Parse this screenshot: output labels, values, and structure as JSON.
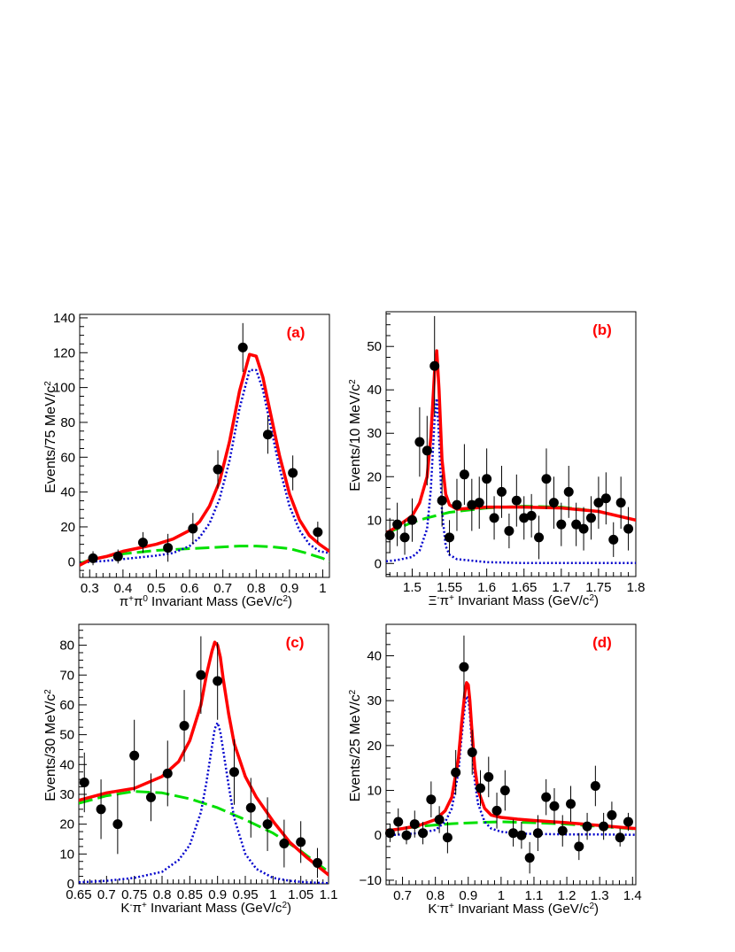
{
  "colors": {
    "total": "#ff0000",
    "signal": "#0000cc",
    "background": "#00e000",
    "points": "#000000"
  },
  "chart_data": [
    {
      "type": "scatter",
      "tag": "(a)",
      "xlabel_html": "π<tspan baseline-shift='super' font-size='10'>+</tspan>π<tspan baseline-shift='super' font-size='10'>0</tspan> Invariant Mass (GeV/c<tspan baseline-shift='super' font-size='10'>2</tspan>)",
      "xlabel": "π+π0 Invariant Mass (GeV/c2)",
      "ylabel": "Events/75 MeV/c2",
      "xlim": [
        0.27,
        1.02
      ],
      "ylim": [
        -9,
        142
      ],
      "xticks": [
        0.3,
        0.4,
        0.5,
        0.6,
        0.7,
        0.8,
        0.9,
        1
      ],
      "xtick_labels": [
        "0.3",
        "0.4",
        "0.5",
        "0.6",
        "0.7",
        "0.8",
        "0.9",
        "1"
      ],
      "yticks": [
        0,
        20,
        40,
        60,
        80,
        100,
        120,
        140
      ],
      "ytick_labels": [
        "0",
        "20",
        "40",
        "60",
        "80",
        "100",
        "120",
        "140"
      ],
      "points": [
        {
          "x": 0.31,
          "y": 2,
          "err": 4
        },
        {
          "x": 0.385,
          "y": 3,
          "err": 4
        },
        {
          "x": 0.46,
          "y": 11,
          "err": 6
        },
        {
          "x": 0.535,
          "y": 8,
          "err": 8
        },
        {
          "x": 0.61,
          "y": 19,
          "err": 9
        },
        {
          "x": 0.685,
          "y": 53,
          "err": 11
        },
        {
          "x": 0.76,
          "y": 123,
          "err": 14
        },
        {
          "x": 0.835,
          "y": 73,
          "err": 11
        },
        {
          "x": 0.91,
          "y": 51,
          "err": 10
        },
        {
          "x": 0.985,
          "y": 17,
          "err": 6
        }
      ],
      "total_curve": {
        "x": [
          0.27,
          0.3,
          0.35,
          0.4,
          0.45,
          0.5,
          0.55,
          0.6,
          0.63,
          0.66,
          0.69,
          0.72,
          0.75,
          0.78,
          0.8,
          0.82,
          0.84,
          0.87,
          0.9,
          0.93,
          0.96,
          0.99,
          1.02
        ],
        "y": [
          -2,
          1,
          3,
          6,
          8,
          10,
          13,
          18,
          23,
          32,
          46,
          69,
          98,
          119,
          118,
          106,
          88,
          61,
          39,
          24,
          15,
          10,
          6
        ]
      },
      "signal_curve": {
        "x": [
          0.27,
          0.3,
          0.35,
          0.4,
          0.45,
          0.5,
          0.55,
          0.6,
          0.63,
          0.66,
          0.69,
          0.72,
          0.75,
          0.78,
          0.8,
          0.82,
          0.84,
          0.87,
          0.9,
          0.93,
          0.96,
          0.99,
          1.02
        ],
        "y": [
          -1,
          0,
          0.5,
          1.5,
          2.5,
          3.5,
          5,
          9,
          14,
          22,
          36,
          58,
          88,
          110,
          110,
          99,
          81,
          54,
          32,
          18,
          10,
          6,
          5
        ]
      },
      "bkg_curve": {
        "x": [
          0.27,
          0.3,
          0.35,
          0.4,
          0.45,
          0.5,
          0.55,
          0.6,
          0.65,
          0.7,
          0.75,
          0.8,
          0.85,
          0.9,
          0.95,
          1.0,
          1.02
        ],
        "y": [
          -1,
          1,
          3,
          4.5,
          5.5,
          6.5,
          7,
          7.5,
          8,
          8.5,
          9,
          9,
          8.5,
          7.5,
          5,
          2,
          0
        ]
      }
    },
    {
      "type": "scatter",
      "tag": "(b)",
      "xlabel_html": "Ξ<tspan baseline-shift='super' font-size='10'>-</tspan>π<tspan baseline-shift='super' font-size='10'>+</tspan> Invariant Mass (GeV/c<tspan baseline-shift='super' font-size='10'>2</tspan>)",
      "xlabel": "Ξ-π+ Invariant Mass (GeV/c2)",
      "ylabel": "Events/10 MeV/c2",
      "xlim": [
        1.465,
        1.8
      ],
      "ylim": [
        -3,
        58
      ],
      "xticks": [
        1.5,
        1.55,
        1.6,
        1.65,
        1.7,
        1.75,
        1.8
      ],
      "xtick_labels": [
        "1.5",
        "1.55",
        "1.6",
        "1.65",
        "1.7",
        "1.75",
        "1.8"
      ],
      "yticks": [
        0,
        10,
        20,
        30,
        40,
        50
      ],
      "ytick_labels": [
        "0",
        "10",
        "20",
        "30",
        "40",
        "50"
      ],
      "points": [
        {
          "x": 1.47,
          "y": 6.5,
          "err": 4
        },
        {
          "x": 1.48,
          "y": 9,
          "err": 5
        },
        {
          "x": 1.49,
          "y": 6,
          "err": 4
        },
        {
          "x": 1.5,
          "y": 10,
          "err": 5
        },
        {
          "x": 1.51,
          "y": 28,
          "err": 8
        },
        {
          "x": 1.52,
          "y": 26,
          "err": 8
        },
        {
          "x": 1.53,
          "y": 45.5,
          "err": 11.5
        },
        {
          "x": 1.54,
          "y": 14.5,
          "err": 6
        },
        {
          "x": 1.55,
          "y": 6,
          "err": 4
        },
        {
          "x": 1.56,
          "y": 13.5,
          "err": 6
        },
        {
          "x": 1.57,
          "y": 20.5,
          "err": 7
        },
        {
          "x": 1.58,
          "y": 13.5,
          "err": 6
        },
        {
          "x": 1.59,
          "y": 14,
          "err": 6
        },
        {
          "x": 1.6,
          "y": 19.5,
          "err": 7
        },
        {
          "x": 1.61,
          "y": 10.5,
          "err": 5
        },
        {
          "x": 1.62,
          "y": 16.5,
          "err": 6
        },
        {
          "x": 1.63,
          "y": 7.5,
          "err": 4
        },
        {
          "x": 1.64,
          "y": 14.5,
          "err": 6
        },
        {
          "x": 1.65,
          "y": 10.5,
          "err": 5
        },
        {
          "x": 1.66,
          "y": 11,
          "err": 5
        },
        {
          "x": 1.67,
          "y": 6,
          "err": 5
        },
        {
          "x": 1.68,
          "y": 19.5,
          "err": 7
        },
        {
          "x": 1.69,
          "y": 14,
          "err": 6
        },
        {
          "x": 1.7,
          "y": 9,
          "err": 5
        },
        {
          "x": 1.71,
          "y": 16.5,
          "err": 6
        },
        {
          "x": 1.72,
          "y": 9,
          "err": 5
        },
        {
          "x": 1.73,
          "y": 8,
          "err": 5
        },
        {
          "x": 1.74,
          "y": 10.5,
          "err": 5
        },
        {
          "x": 1.75,
          "y": 14,
          "err": 6
        },
        {
          "x": 1.76,
          "y": 15,
          "err": 6
        },
        {
          "x": 1.77,
          "y": 5.5,
          "err": 4
        },
        {
          "x": 1.78,
          "y": 14,
          "err": 6
        },
        {
          "x": 1.79,
          "y": 8,
          "err": 5
        }
      ],
      "total_curve": {
        "x": [
          1.465,
          1.48,
          1.5,
          1.51,
          1.52,
          1.525,
          1.53,
          1.533,
          1.536,
          1.54,
          1.545,
          1.55,
          1.56,
          1.6,
          1.65,
          1.7,
          1.75,
          1.8
        ],
        "y": [
          7,
          8.5,
          11,
          14,
          20,
          29,
          44,
          49,
          40,
          24,
          16,
          13.5,
          12.5,
          13,
          13,
          12.8,
          12,
          10
        ]
      },
      "signal_curve": {
        "x": [
          1.465,
          1.48,
          1.5,
          1.51,
          1.52,
          1.525,
          1.53,
          1.533,
          1.536,
          1.54,
          1.545,
          1.55,
          1.56,
          1.6,
          1.65,
          1.7,
          1.75,
          1.8
        ],
        "y": [
          0.5,
          0.8,
          1.5,
          3,
          8,
          17,
          33,
          38,
          29,
          12,
          4,
          2,
          1,
          0.3,
          0.1,
          0.1,
          0.1,
          0.1
        ]
      },
      "bkg_curve": {
        "x": [
          1.465,
          1.48,
          1.5,
          1.52,
          1.55,
          1.6,
          1.65,
          1.7,
          1.75,
          1.8
        ],
        "y": [
          7,
          8,
          9.5,
          10.5,
          11.8,
          12.8,
          13.2,
          13,
          12,
          10
        ]
      }
    },
    {
      "type": "scatter",
      "tag": "(c)",
      "xlabel_html": "K<tspan baseline-shift='super' font-size='10'>-</tspan>π<tspan baseline-shift='super' font-size='10'>+</tspan> Invariant Mass (GeV/c<tspan baseline-shift='super' font-size='10'>2</tspan>)",
      "xlabel": "K-π+ Invariant Mass (GeV/c2)",
      "ylabel": "Events/30 MeV/c2",
      "xlim": [
        0.65,
        1.1
      ],
      "ylim": [
        0,
        87
      ],
      "xticks": [
        0.65,
        0.7,
        0.75,
        0.8,
        0.85,
        0.9,
        0.95,
        1,
        1.05,
        1.1
      ],
      "xtick_labels": [
        "0.65",
        "0.7",
        "0.75",
        "0.8",
        "0.85",
        "0.9",
        "0.95",
        "1",
        "1.05",
        "1.1"
      ],
      "yticks": [
        0,
        10,
        20,
        30,
        40,
        50,
        60,
        70,
        80
      ],
      "ytick_labels": [
        "0",
        "10",
        "20",
        "30",
        "40",
        "50",
        "60",
        "70",
        "80"
      ],
      "points": [
        {
          "x": 0.66,
          "y": 34,
          "err": 10
        },
        {
          "x": 0.69,
          "y": 25,
          "err": 10
        },
        {
          "x": 0.72,
          "y": 20,
          "err": 10
        },
        {
          "x": 0.75,
          "y": 43,
          "err": 12
        },
        {
          "x": 0.78,
          "y": 29,
          "err": 8
        },
        {
          "x": 0.81,
          "y": 37,
          "err": 11
        },
        {
          "x": 0.84,
          "y": 53,
          "err": 12
        },
        {
          "x": 0.87,
          "y": 70,
          "err": 13
        },
        {
          "x": 0.9,
          "y": 68,
          "err": 13
        },
        {
          "x": 0.93,
          "y": 37.5,
          "err": 11
        },
        {
          "x": 0.96,
          "y": 25.5,
          "err": 10
        },
        {
          "x": 0.99,
          "y": 20,
          "err": 9
        },
        {
          "x": 1.02,
          "y": 13.5,
          "err": 8
        },
        {
          "x": 1.05,
          "y": 14,
          "err": 7
        },
        {
          "x": 1.08,
          "y": 7,
          "err": 5
        }
      ],
      "total_curve": {
        "x": [
          0.65,
          0.7,
          0.75,
          0.8,
          0.83,
          0.85,
          0.87,
          0.88,
          0.89,
          0.895,
          0.9,
          0.905,
          0.91,
          0.92,
          0.93,
          0.95,
          0.97,
          1.0,
          1.03,
          1.06,
          1.1
        ],
        "y": [
          28,
          30.5,
          32,
          36,
          41,
          48,
          60,
          70,
          78,
          81,
          80,
          76,
          69,
          57,
          47,
          36,
          29,
          21,
          14,
          9,
          3
        ]
      },
      "signal_curve": {
        "x": [
          0.65,
          0.7,
          0.75,
          0.8,
          0.83,
          0.85,
          0.87,
          0.88,
          0.89,
          0.895,
          0.9,
          0.905,
          0.91,
          0.92,
          0.93,
          0.95,
          0.97,
          1.0,
          1.03,
          1.06,
          1.1
        ],
        "y": [
          0.5,
          1,
          2,
          4,
          8,
          13,
          24,
          34,
          46,
          52,
          54,
          51,
          45,
          33,
          22,
          10,
          5,
          2,
          1,
          0.5,
          0.2
        ]
      },
      "bkg_curve": {
        "x": [
          0.65,
          0.7,
          0.75,
          0.8,
          0.85,
          0.9,
          0.95,
          1.0,
          1.05,
          1.1
        ],
        "y": [
          27,
          29.5,
          31,
          30.5,
          28.5,
          25.5,
          21.5,
          17,
          11,
          4
        ]
      }
    },
    {
      "type": "scatter",
      "tag": "(d)",
      "xlabel_html": "K<tspan baseline-shift='super' font-size='10'>-</tspan>π<tspan baseline-shift='super' font-size='10'>+</tspan> Invariant Mass (GeV/c<tspan baseline-shift='super' font-size='10'>2</tspan>)",
      "xlabel": "K-π+ Invariant Mass (GeV/c2)",
      "ylabel": "Events/25 MeV/c2",
      "xlim": [
        0.65,
        1.41
      ],
      "ylim": [
        -11,
        47
      ],
      "xticks": [
        0.7,
        0.8,
        0.9,
        1,
        1.1,
        1.2,
        1.3,
        1.4
      ],
      "xtick_labels": [
        "0.7",
        "0.8",
        "0.9",
        "1",
        "1.1",
        "1.2",
        "1.3",
        "1.4"
      ],
      "yticks": [
        -10,
        0,
        10,
        20,
        30,
        40
      ],
      "ytick_labels": [
        "−10",
        "0",
        "10",
        "20",
        "30",
        "40"
      ],
      "points": [
        {
          "x": 0.662,
          "y": 0.5,
          "err": 2
        },
        {
          "x": 0.687,
          "y": 3,
          "err": 3
        },
        {
          "x": 0.712,
          "y": 0,
          "err": 2
        },
        {
          "x": 0.737,
          "y": 2.5,
          "err": 3
        },
        {
          "x": 0.762,
          "y": 0.5,
          "err": 2.5
        },
        {
          "x": 0.787,
          "y": 8,
          "err": 4
        },
        {
          "x": 0.812,
          "y": 3.5,
          "err": 3
        },
        {
          "x": 0.837,
          "y": -0.5,
          "err": 3.5
        },
        {
          "x": 0.862,
          "y": 14,
          "err": 5
        },
        {
          "x": 0.887,
          "y": 37.5,
          "err": 7
        },
        {
          "x": 0.912,
          "y": 18.5,
          "err": 5
        },
        {
          "x": 0.937,
          "y": 10.5,
          "err": 4
        },
        {
          "x": 0.962,
          "y": 13,
          "err": 4.5
        },
        {
          "x": 0.987,
          "y": 5.5,
          "err": 4
        },
        {
          "x": 1.012,
          "y": 10,
          "err": 4.5
        },
        {
          "x": 1.037,
          "y": 0.5,
          "err": 3
        },
        {
          "x": 1.062,
          "y": 0,
          "err": 3
        },
        {
          "x": 1.087,
          "y": -5,
          "err": 3.5
        },
        {
          "x": 1.112,
          "y": 0.5,
          "err": 4
        },
        {
          "x": 1.137,
          "y": 8.5,
          "err": 4
        },
        {
          "x": 1.162,
          "y": 6.5,
          "err": 4
        },
        {
          "x": 1.187,
          "y": 1,
          "err": 3.5
        },
        {
          "x": 1.212,
          "y": 7,
          "err": 4
        },
        {
          "x": 1.237,
          "y": -2.5,
          "err": 3
        },
        {
          "x": 1.262,
          "y": 2,
          "err": 3
        },
        {
          "x": 1.287,
          "y": 11,
          "err": 4.5
        },
        {
          "x": 1.312,
          "y": 2,
          "err": 3
        },
        {
          "x": 1.337,
          "y": 4.5,
          "err": 3
        },
        {
          "x": 1.362,
          "y": -0.5,
          "err": 2
        },
        {
          "x": 1.387,
          "y": 3,
          "err": 2
        }
      ],
      "total_curve": {
        "x": [
          0.65,
          0.7,
          0.75,
          0.8,
          0.83,
          0.85,
          0.87,
          0.88,
          0.89,
          0.895,
          0.9,
          0.905,
          0.91,
          0.92,
          0.93,
          0.95,
          0.97,
          1.0,
          1.05,
          1.1,
          1.2,
          1.3,
          1.41
        ],
        "y": [
          1,
          1.5,
          2.2,
          3.5,
          5.5,
          8.5,
          17,
          25,
          32,
          34,
          33.5,
          30,
          24.5,
          15,
          10,
          6,
          4.5,
          4,
          3.6,
          3.3,
          2.8,
          2.2,
          1.5
        ]
      },
      "signal_curve": {
        "x": [
          0.65,
          0.7,
          0.75,
          0.8,
          0.83,
          0.85,
          0.87,
          0.88,
          0.89,
          0.895,
          0.9,
          0.905,
          0.91,
          0.92,
          0.93,
          0.95,
          0.97,
          1.0,
          1.05,
          1.1,
          1.2,
          1.3,
          1.41
        ],
        "y": [
          0,
          0.2,
          0.5,
          1.2,
          3,
          6,
          14,
          22,
          29,
          31,
          30.5,
          27,
          21.5,
          12,
          7,
          3,
          1.5,
          0.8,
          0.4,
          0.3,
          0.2,
          0.2,
          0.1
        ]
      },
      "bkg_curve": {
        "x": [
          0.65,
          0.75,
          0.85,
          0.95,
          1.0,
          1.05,
          1.1,
          1.2,
          1.3,
          1.41
        ],
        "y": [
          1,
          2,
          2.6,
          2.9,
          3,
          2.9,
          2.8,
          2.5,
          2,
          1.4
        ]
      }
    }
  ]
}
